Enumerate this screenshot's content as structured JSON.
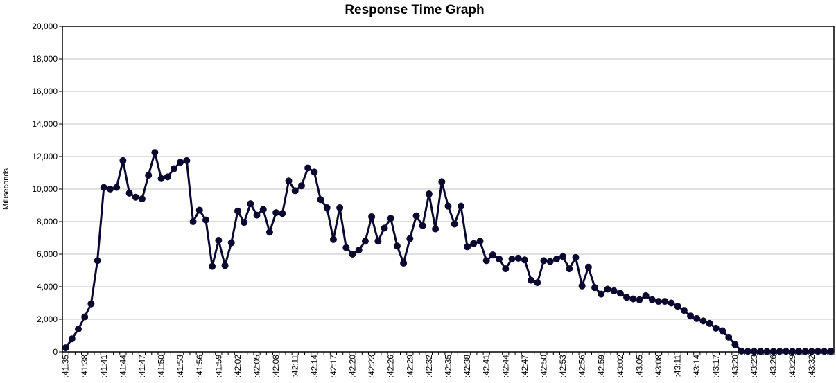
{
  "chart_data": {
    "type": "line",
    "title": "Response Time Graph",
    "xlabel": "",
    "ylabel": "Milliseconds",
    "ylim": [
      0,
      20000
    ],
    "yticks": [
      "0",
      "2,000",
      "4,000",
      "6,000",
      "8,000",
      "10,000",
      "12,000",
      "14,000",
      "16,000",
      "18,000",
      "20,000"
    ],
    "grid": true,
    "legend": "none",
    "colors": {
      "line": "#0b0830",
      "grid": "#c0c0c0",
      "frame": "#000000"
    },
    "x_tick_labels": [
      ":41:35",
      ":41:38",
      ":41:41",
      ":41:44",
      ":41:47",
      ":41:50",
      ":41:53",
      ":41:56",
      ":41:59",
      ":42:02",
      ":42:05",
      ":42:08",
      ":42:11",
      ":42:14",
      ":42:17",
      ":42:20",
      ":42:23",
      ":42:26",
      ":42:29",
      ":42:32",
      ":42:35",
      ":42:38",
      ":42:41",
      ":42:44",
      ":42:47",
      ":42:50",
      ":42:53",
      ":42:56",
      ":42:59",
      ":43:02",
      ":43:05",
      ":43:08",
      ":43:11",
      ":43:14",
      ":43:17",
      ":43:20",
      ":43:23",
      ":43:26",
      ":43:29",
      ":43:32"
    ],
    "series": [
      {
        "values": [
          250,
          800,
          1400,
          2150,
          2950,
          5600,
          10100,
          10000,
          10100,
          11750,
          9750,
          9500,
          9400,
          10850,
          12250,
          10650,
          10750,
          11250,
          11650,
          11750,
          8000,
          8700,
          8100,
          5250,
          6850,
          5300,
          6700,
          8650,
          7950,
          9100,
          8400,
          8750,
          7350,
          8550,
          8500,
          10500,
          9900,
          10200,
          11300,
          11050,
          9350,
          8850,
          6900,
          8850,
          6400,
          6000,
          6250,
          6800,
          8300,
          6800,
          7600,
          8200,
          6500,
          5450,
          6950,
          8350,
          7750,
          9700,
          7550,
          10450,
          8950,
          7850,
          8950,
          6450,
          6650,
          6800,
          5600,
          5950,
          5700,
          5100,
          5700,
          5750,
          5650,
          4400,
          4250,
          5600,
          5550,
          5700,
          5850,
          5100,
          5800,
          4050,
          5200,
          3950,
          3550,
          3850,
          3750,
          3600,
          3350,
          3250,
          3200,
          3450,
          3200,
          3100,
          3100,
          3000,
          2800,
          2550,
          2200,
          2050,
          1900,
          1750,
          1450,
          1300,
          900,
          450,
          50,
          30,
          30,
          30,
          30,
          30,
          30,
          30,
          30,
          30,
          30,
          30,
          30,
          30,
          30
        ]
      }
    ]
  }
}
